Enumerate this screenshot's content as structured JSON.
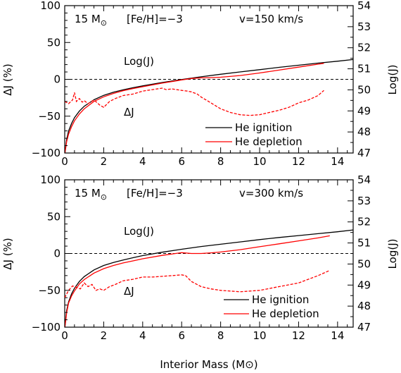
{
  "chart_data": [
    {
      "type": "line",
      "panel": "top",
      "annotations": {
        "mass": "15 M",
        "sun_symbol": "⊙",
        "metallicity": "[Fe/H]=−3",
        "velocity": "v=150 km/s",
        "logj_label": "Log(J)",
        "dj_label": "ΔJ"
      },
      "xlabel": "",
      "ylabel_left": "ΔJ (%)",
      "ylabel_right": "Log(J)",
      "xlim": [
        0,
        14.8
      ],
      "ylim_left": [
        -100,
        100
      ],
      "ylim_right": [
        47,
        54
      ],
      "x_ticks": [
        "0",
        "2",
        "4",
        "6",
        "8",
        "10",
        "12",
        "14"
      ],
      "y_left_ticks": [
        "100",
        "50",
        "0",
        "−50",
        "−100"
      ],
      "y_right_ticks": [
        "54",
        "53",
        "52",
        "51",
        "50",
        "49",
        "48",
        "47"
      ],
      "legend": {
        "position": "lower-right",
        "entries": [
          {
            "label": "He ignition",
            "color": "#000000"
          },
          {
            "label": "He depletion",
            "color": "#ff0000"
          }
        ]
      },
      "series": [
        {
          "name": "He ignition",
          "axis": "right",
          "color": "#000000",
          "dash": "solid",
          "x": [
            0.01,
            0.1,
            0.2,
            0.35,
            0.5,
            0.75,
            1.0,
            1.5,
            2.0,
            2.5,
            3.0,
            3.5,
            4.0,
            5.0,
            6.0,
            7.0,
            8.0,
            9.0,
            10.0,
            11.0,
            12.0,
            13.0,
            14.0,
            14.8
          ],
          "y": [
            47.0,
            47.65,
            48.05,
            48.4,
            48.68,
            48.99,
            49.22,
            49.53,
            49.74,
            49.89,
            50.0,
            50.1,
            50.19,
            50.35,
            50.49,
            50.62,
            50.74,
            50.85,
            50.96,
            51.07,
            51.17,
            51.27,
            51.36,
            51.44
          ]
        },
        {
          "name": "He depletion",
          "axis": "right",
          "color": "#ff0000",
          "dash": "solid",
          "x": [
            0.01,
            0.1,
            0.2,
            0.35,
            0.5,
            0.75,
            1.0,
            1.5,
            2.0,
            2.5,
            3.0,
            3.5,
            4.0,
            5.0,
            6.0,
            6.5,
            7.0,
            7.5,
            8.0,
            9.0,
            10.0,
            11.0,
            12.0,
            13.0,
            13.3
          ],
          "y": [
            47.0,
            47.55,
            47.9,
            48.25,
            48.53,
            48.85,
            49.1,
            49.45,
            49.67,
            49.83,
            49.96,
            50.06,
            50.15,
            50.32,
            50.47,
            50.54,
            50.57,
            50.58,
            50.6,
            50.68,
            50.8,
            50.94,
            51.08,
            51.22,
            51.26
          ]
        },
        {
          "name": "ΔJ",
          "axis": "left",
          "color": "#ff0000",
          "dash": "dashed",
          "x": [
            0.0,
            0.2,
            0.4,
            0.5,
            0.6,
            0.75,
            0.9,
            1.0,
            1.2,
            1.5,
            1.8,
            2.0,
            2.3,
            2.6,
            3.0,
            3.5,
            4.0,
            4.5,
            5.0,
            5.2,
            5.5,
            6.0,
            6.3,
            6.5,
            6.8,
            7.0,
            7.5,
            8.0,
            8.5,
            9.0,
            9.5,
            10.0,
            10.5,
            11.0,
            11.5,
            12.0,
            12.5,
            13.0,
            13.3
          ],
          "y": [
            -30,
            -33,
            -28,
            -18,
            -30,
            -26,
            -31,
            -29,
            -33,
            -28,
            -35,
            -38,
            -30,
            -26,
            -22,
            -20,
            -16,
            -14,
            -12,
            -14,
            -13,
            -15,
            -16,
            -17,
            -20,
            -24,
            -32,
            -40,
            -45,
            -48,
            -49,
            -48,
            -45,
            -42,
            -38,
            -32,
            -28,
            -22,
            -15
          ]
        }
      ]
    },
    {
      "type": "line",
      "panel": "bottom",
      "annotations": {
        "mass": "15 M",
        "sun_symbol": "⊙",
        "metallicity": "[Fe/H]=−3",
        "velocity": "v=300 km/s",
        "logj_label": "Log(J)",
        "dj_label": "ΔJ"
      },
      "xlabel": "Interior Mass (M⊙)",
      "ylabel_left": "ΔJ (%)",
      "ylabel_right": "Log(J)",
      "xlim": [
        0,
        14.8
      ],
      "ylim_left": [
        -100,
        100
      ],
      "ylim_right": [
        47,
        54
      ],
      "x_ticks": [
        "0",
        "2",
        "4",
        "6",
        "8",
        "10",
        "12",
        "14"
      ],
      "y_left_ticks": [
        "100",
        "50",
        "0",
        "−50",
        "−100"
      ],
      "y_right_ticks": [
        "54",
        "53",
        "52",
        "51",
        "50",
        "49",
        "48",
        "47"
      ],
      "legend": {
        "position": "lower-right",
        "entries": [
          {
            "label": "He ignition",
            "color": "#000000"
          },
          {
            "label": "He depletion",
            "color": "#ff0000"
          }
        ]
      },
      "series": [
        {
          "name": "He ignition",
          "axis": "right",
          "color": "#000000",
          "dash": "solid",
          "x": [
            0.01,
            0.1,
            0.2,
            0.35,
            0.5,
            0.75,
            1.0,
            1.5,
            2.0,
            2.5,
            3.0,
            3.5,
            4.0,
            5.0,
            6.0,
            7.0,
            8.0,
            9.0,
            10.0,
            11.0,
            12.0,
            13.0,
            14.0,
            14.8
          ],
          "y": [
            47.05,
            47.8,
            48.2,
            48.58,
            48.85,
            49.17,
            49.4,
            49.72,
            49.93,
            50.07,
            50.19,
            50.3,
            50.4,
            50.56,
            50.7,
            50.83,
            50.94,
            51.05,
            51.16,
            51.26,
            51.35,
            51.44,
            51.53,
            51.62
          ]
        },
        {
          "name": "He depletion",
          "axis": "right",
          "color": "#ff0000",
          "dash": "solid",
          "x": [
            0.01,
            0.1,
            0.2,
            0.35,
            0.5,
            0.75,
            1.0,
            1.5,
            2.0,
            2.5,
            3.0,
            3.5,
            4.0,
            5.0,
            6.0,
            6.5,
            7.0,
            7.5,
            8.0,
            9.0,
            10.0,
            11.0,
            12.0,
            13.0,
            13.6
          ],
          "y": [
            47.0,
            47.7,
            48.15,
            48.48,
            48.72,
            49.05,
            49.26,
            49.57,
            49.78,
            49.93,
            50.05,
            50.15,
            50.25,
            50.41,
            50.54,
            50.5,
            50.5,
            50.53,
            50.57,
            50.68,
            50.82,
            50.96,
            51.1,
            51.24,
            51.34
          ]
        },
        {
          "name": "ΔJ",
          "axis": "left",
          "color": "#ff0000",
          "dash": "dashed",
          "x": [
            0.0,
            0.2,
            0.4,
            0.6,
            0.8,
            1.0,
            1.2,
            1.4,
            1.6,
            1.8,
            2.0,
            2.3,
            2.6,
            3.0,
            3.5,
            4.0,
            4.5,
            5.0,
            5.5,
            6.0,
            6.2,
            6.5,
            7.0,
            7.5,
            8.0,
            9.0,
            10.0,
            11.0,
            12.0,
            13.0,
            13.6
          ],
          "y": [
            -60,
            -50,
            -44,
            -46,
            -48,
            -40,
            -45,
            -42,
            -50,
            -48,
            -50,
            -45,
            -42,
            -37,
            -35,
            -32,
            -32,
            -31,
            -30,
            -29,
            -30,
            -38,
            -45,
            -48,
            -50,
            -52,
            -50,
            -45,
            -40,
            -30,
            -23
          ]
        }
      ]
    }
  ]
}
